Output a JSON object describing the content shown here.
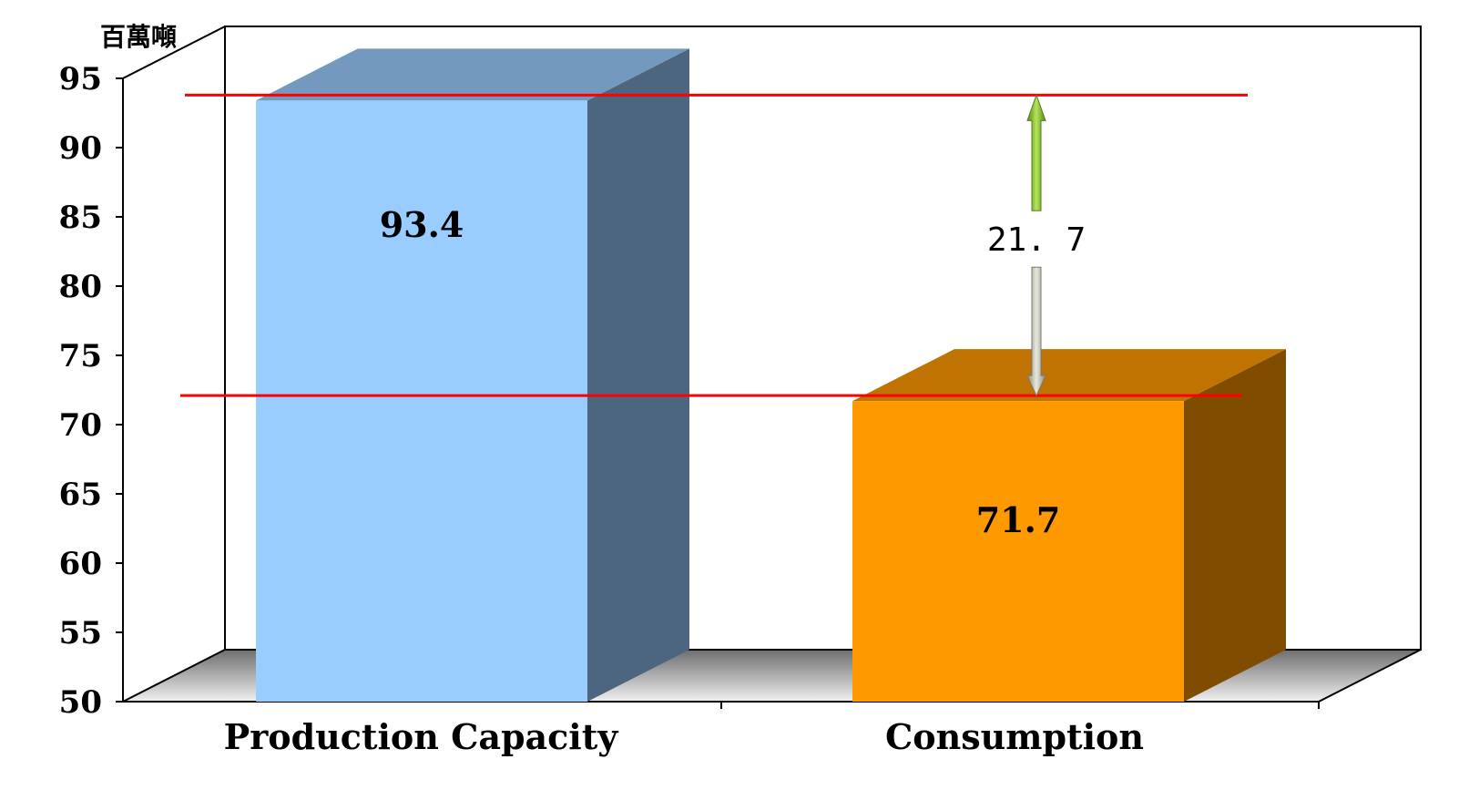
{
  "chart_data": {
    "type": "bar",
    "categories": [
      "Production Capacity",
      "Consumption"
    ],
    "values": [
      93.4,
      71.7
    ],
    "value_labels": [
      "93.4",
      "71.7"
    ],
    "unit": "百萬噸",
    "ylim": [
      50,
      95
    ],
    "yticks": [
      50,
      55,
      60,
      65,
      70,
      75,
      80,
      85,
      90,
      95
    ],
    "colors": [
      "#99CCFF",
      "#FF9900"
    ],
    "reference_lines": [
      93.4,
      71.7
    ],
    "reference_line_color": "#FF0000",
    "difference": {
      "label": "21. 7",
      "from": 71.7,
      "to": 93.4
    },
    "grid": false,
    "legend": "none",
    "style": "3d"
  }
}
